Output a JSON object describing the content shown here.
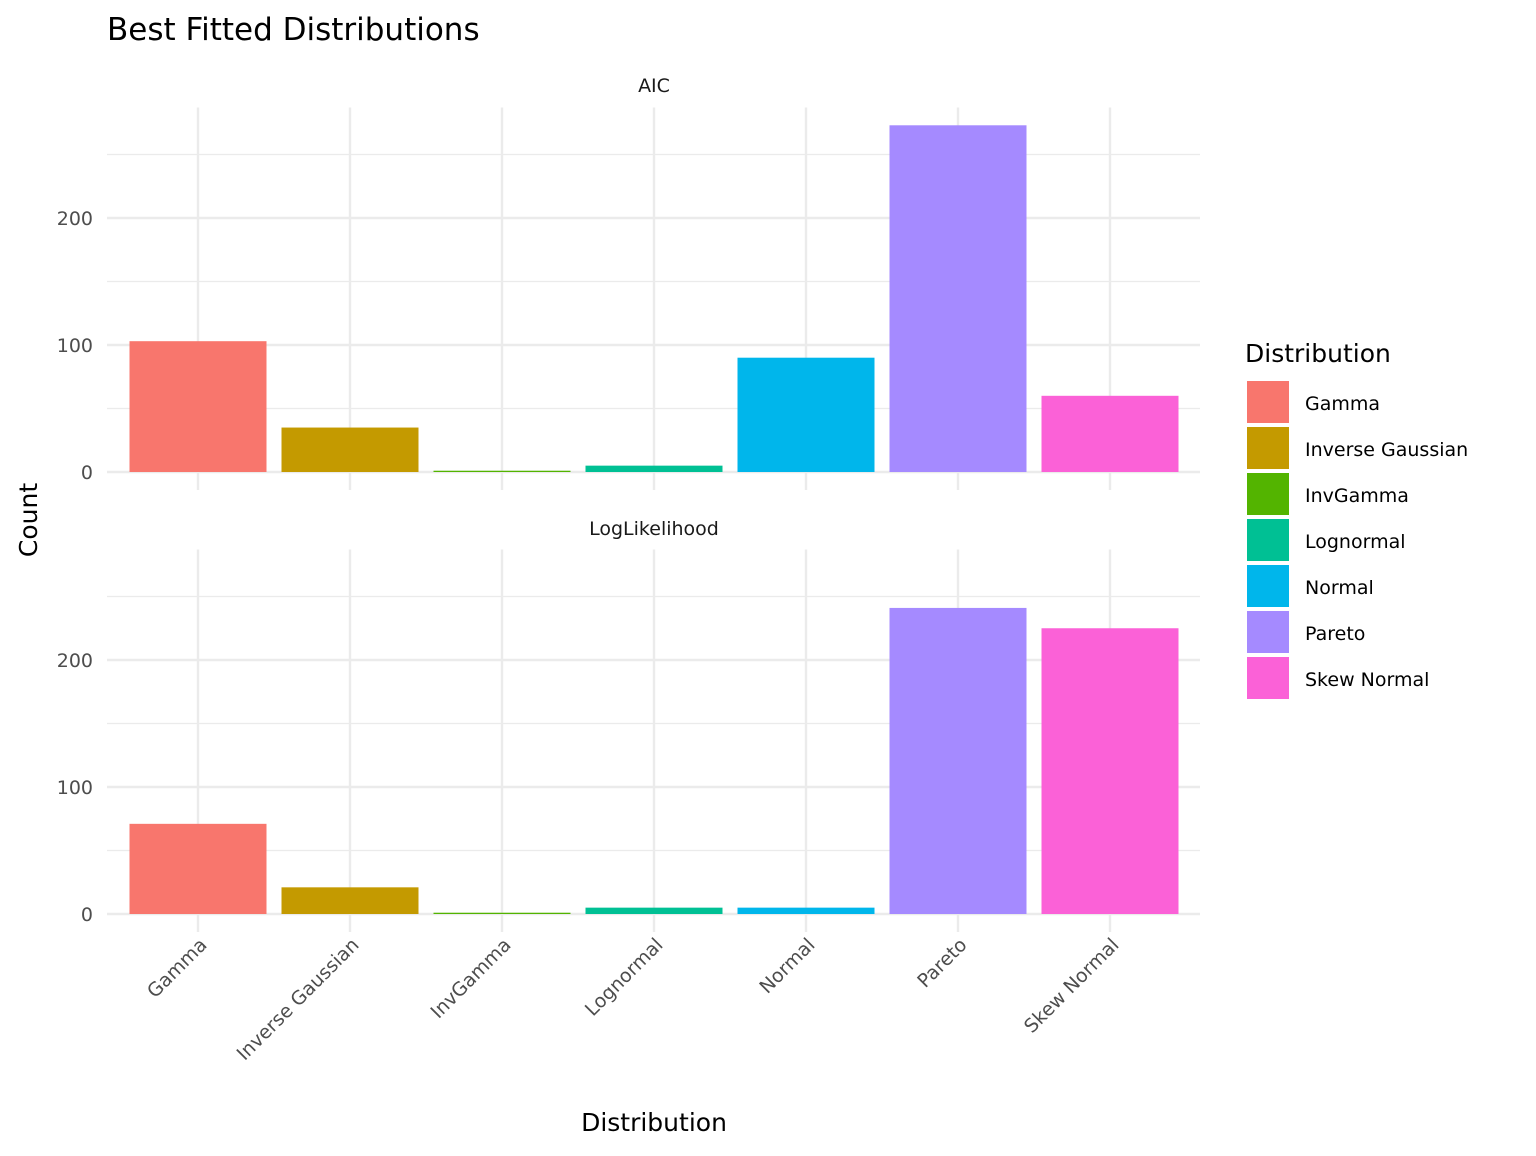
{
  "chart_data": {
    "type": "bar",
    "title": "Best Fitted Distributions",
    "xlabel": "Distribution",
    "ylabel": "Count",
    "categories": [
      "Gamma",
      "Inverse Gaussian",
      "InvGamma",
      "Lognormal",
      "Normal",
      "Pareto",
      "Skew Normal"
    ],
    "colors": [
      "#F8766D",
      "#C49A00",
      "#53B400",
      "#00C094",
      "#00B6EB",
      "#A58AFF",
      "#FB61D7"
    ],
    "yticks": [
      0,
      100,
      200
    ],
    "ylim": [
      0,
      287
    ],
    "grid": true,
    "facets": [
      {
        "label": "AIC",
        "values": [
          103,
          35,
          1,
          5,
          90,
          273,
          60
        ]
      },
      {
        "label": "LogLikelihood",
        "values": [
          71,
          21,
          1,
          5,
          5,
          241,
          225
        ]
      }
    ],
    "legend": {
      "title": "Distribution",
      "position": "right",
      "entries": [
        "Gamma",
        "Inverse Gaussian",
        "InvGamma",
        "Lognormal",
        "Normal",
        "Pareto",
        "Skew Normal"
      ]
    }
  }
}
